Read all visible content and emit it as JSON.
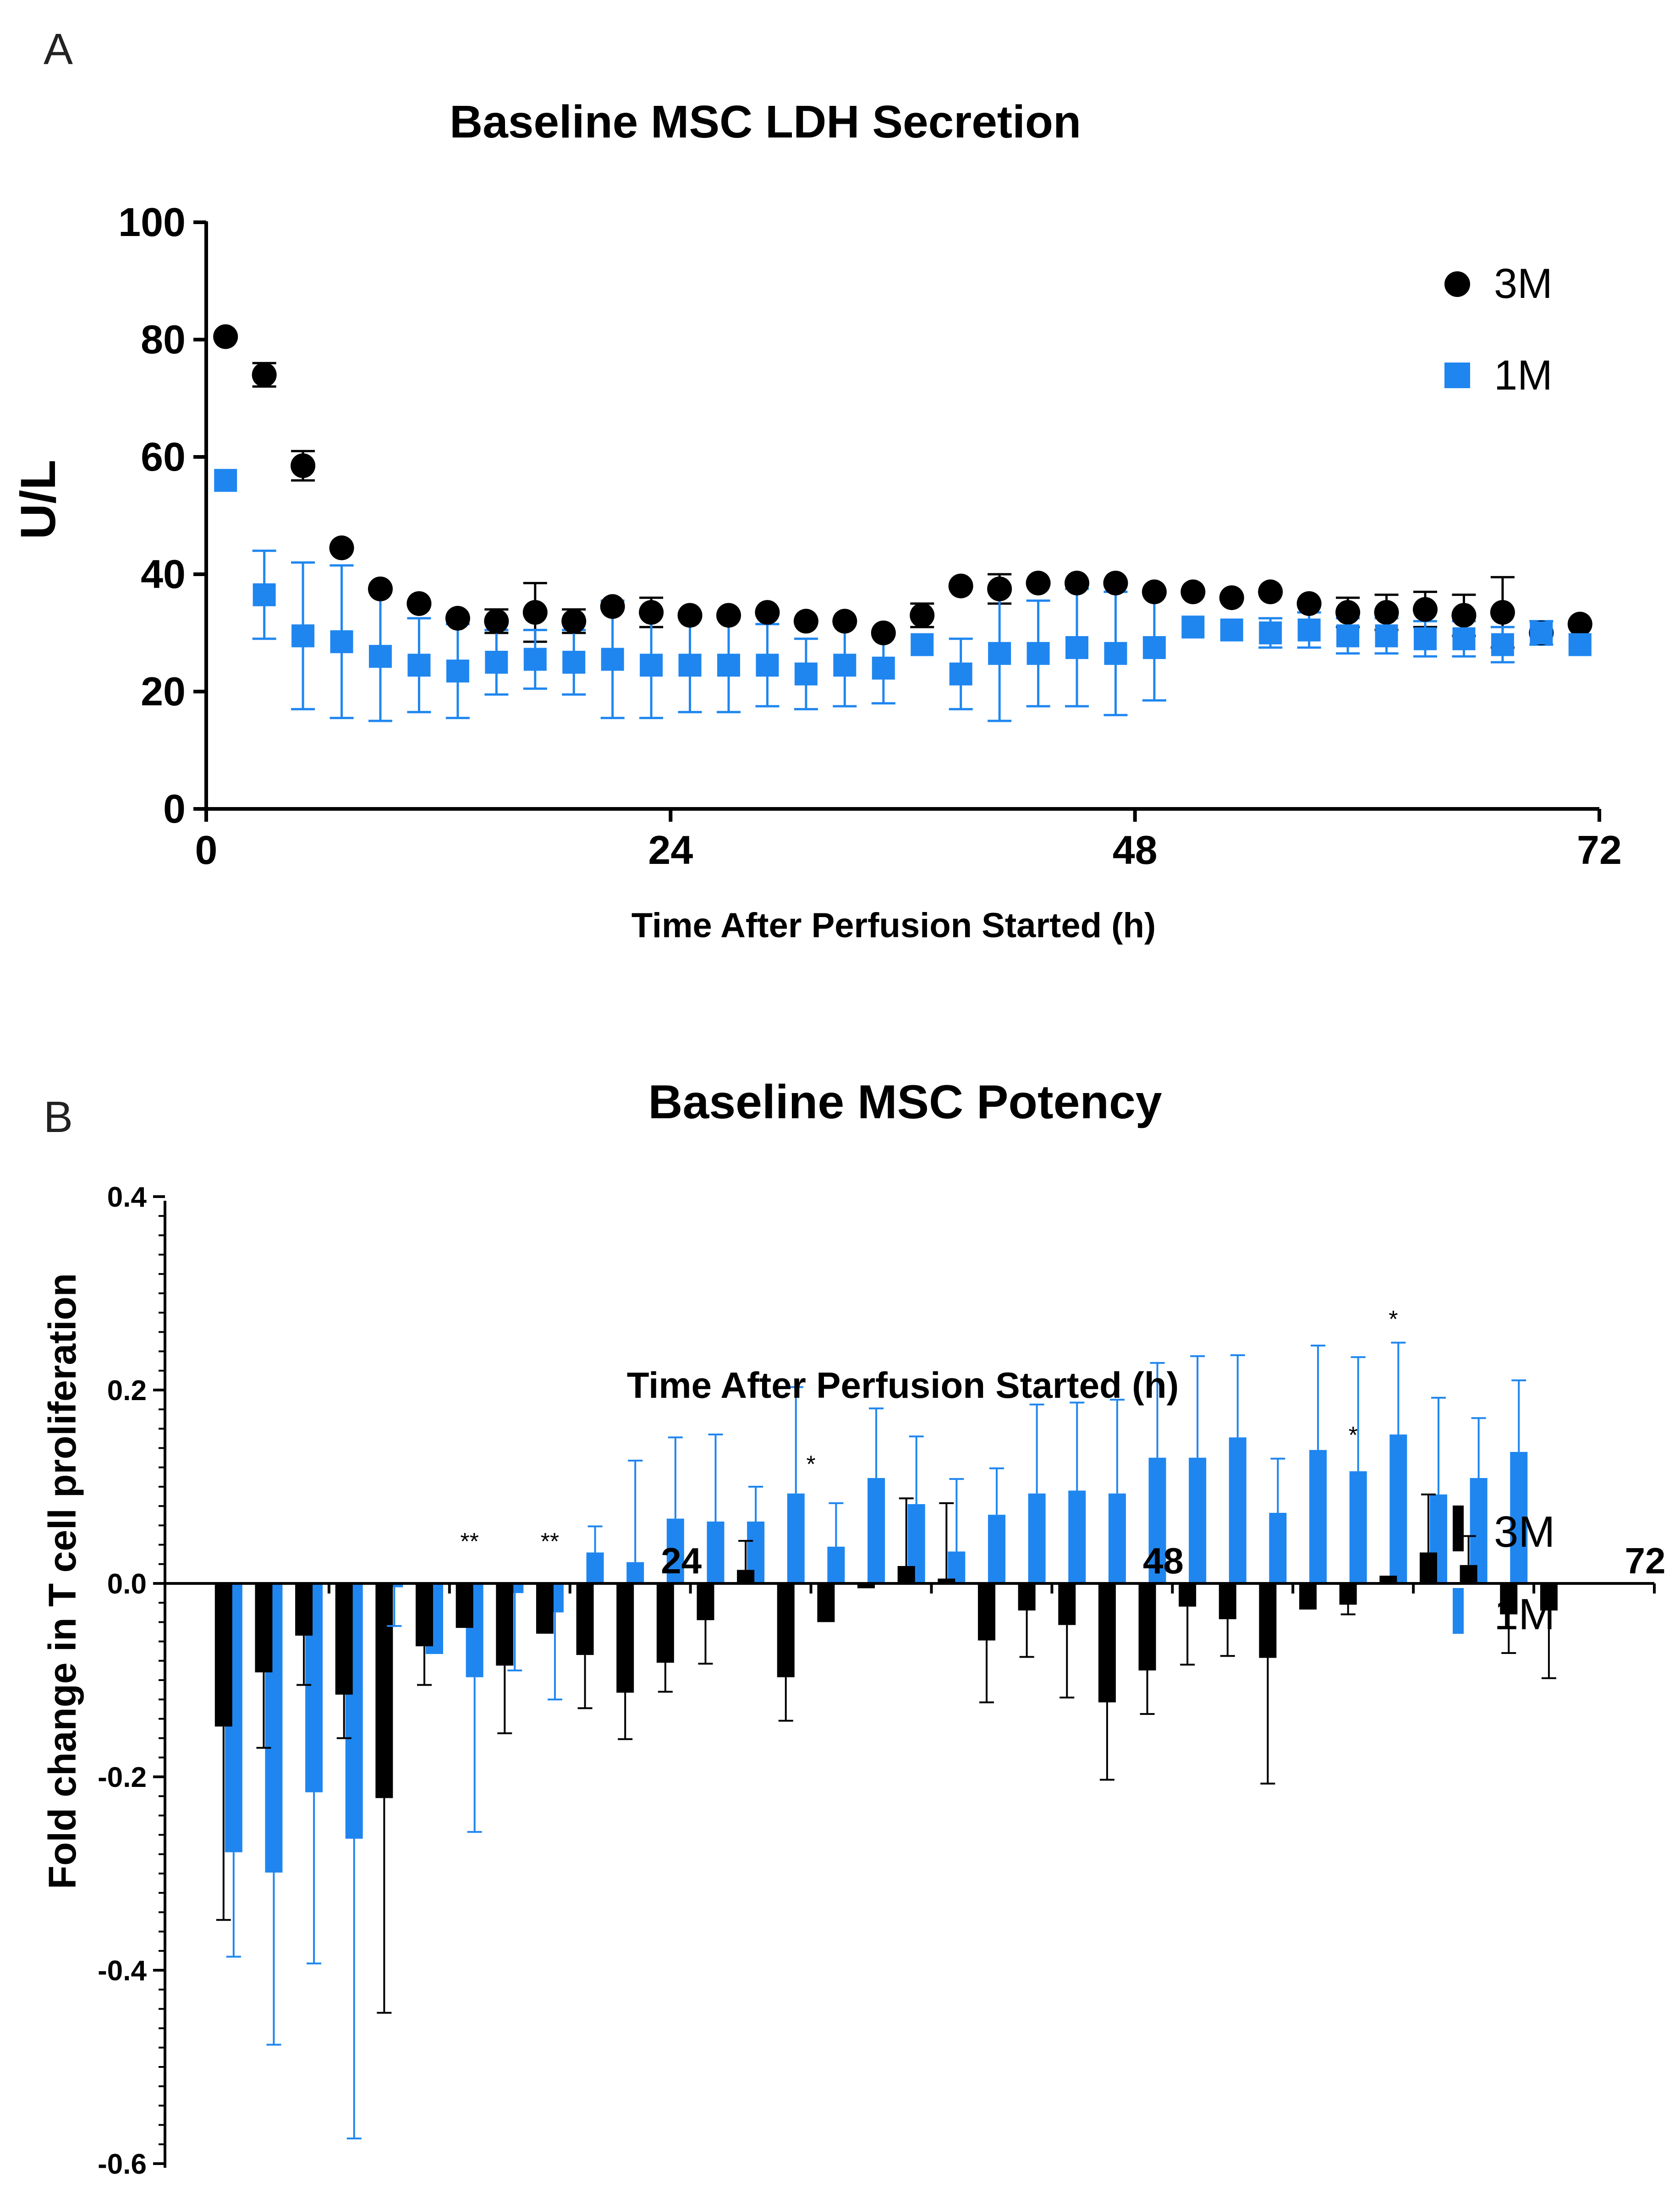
{
  "figure": {
    "panel_a_label": "A",
    "panel_b_label": "B"
  },
  "chart_data": [
    {
      "type": "scatter",
      "panel": "A",
      "title": "Baseline MSC LDH Secretion",
      "xlabel": "Time After Perfusion Started (h)",
      "ylabel": "U/L",
      "xlim": [
        0,
        72
      ],
      "ylim": [
        0,
        100
      ],
      "xticks": [
        0,
        24,
        48,
        72
      ],
      "xtick_labels": [
        "0",
        "24",
        "48",
        "72"
      ],
      "yticks": [
        0,
        20,
        40,
        60,
        80,
        100
      ],
      "ytick_labels": [
        "0",
        "20",
        "40",
        "60",
        "80",
        "100"
      ],
      "grid": false,
      "legend_position": "top-right",
      "x": [
        1,
        3,
        5,
        7,
        9,
        11,
        13,
        15,
        17,
        19,
        21,
        23,
        25,
        27,
        29,
        31,
        33,
        35,
        37,
        39,
        41,
        43,
        45,
        47,
        49,
        51,
        53,
        55,
        57,
        59,
        61,
        63,
        65,
        67,
        69,
        71
      ],
      "series": [
        {
          "name": "3M",
          "marker": "circle",
          "color": "#000000",
          "values": [
            80.5,
            74,
            58.5,
            44.5,
            37.5,
            35,
            32.5,
            32,
            33.5,
            32,
            34.5,
            33.5,
            33,
            33,
            33.5,
            32,
            32,
            30,
            33,
            38,
            37.5,
            38.5,
            38.5,
            38.5,
            37,
            37,
            36,
            37,
            35,
            33.5,
            33.5,
            34,
            33,
            33.5,
            30,
            31.5
          ],
          "errors": [
            0,
            2,
            2.5,
            0,
            0,
            0,
            0,
            2,
            5,
            2,
            0,
            2.5,
            0,
            0,
            0,
            0,
            0,
            0,
            2,
            0,
            2.5,
            0,
            0,
            0,
            0,
            0,
            0,
            0,
            0,
            2.5,
            3,
            3,
            3.5,
            6,
            0,
            0
          ]
        },
        {
          "name": "1M",
          "marker": "square",
          "color": "#1f86f0",
          "values": [
            56,
            36.5,
            29.5,
            28.5,
            26,
            24.5,
            23.5,
            25,
            25.5,
            25,
            25.5,
            24.5,
            24.5,
            24.5,
            24.5,
            23,
            24.5,
            24,
            28,
            23,
            26.5,
            26.5,
            27.5,
            26.5,
            27.5,
            31,
            30.5,
            30,
            30.5,
            29.5,
            29.5,
            29,
            29,
            28,
            30,
            28
          ],
          "errors": [
            0,
            7.5,
            12.5,
            13,
            11,
            8,
            8,
            5.5,
            5,
            5.5,
            10,
            9,
            8,
            8,
            7,
            6,
            7,
            6,
            0,
            6,
            11.5,
            9,
            10,
            10.5,
            9,
            0,
            0,
            2.5,
            3,
            3,
            3,
            3,
            3,
            3,
            2,
            0
          ]
        }
      ]
    },
    {
      "type": "bar",
      "panel": "B",
      "title": "Baseline MSC Potency",
      "xlabel": "Time After Perfusion Started (h)",
      "ylabel": "Fold change in T cell proliferation",
      "xlim": [
        0,
        72
      ],
      "ylim": [
        -0.6,
        0.4
      ],
      "xticks": [
        24,
        48,
        72
      ],
      "xtick_labels": [
        "24",
        "48",
        "72"
      ],
      "yticks": [
        -0.6,
        -0.4,
        -0.2,
        0.0,
        0.2,
        0.4
      ],
      "ytick_labels": [
        "-0.6",
        "-0.4",
        "-0.2",
        "0.0",
        "0.2",
        "0.4"
      ],
      "grid": false,
      "legend_position": "bottom-right",
      "x": [
        1,
        3,
        5,
        7,
        9,
        11,
        13,
        15,
        17,
        19,
        21,
        23,
        25,
        27,
        29,
        31,
        33,
        35,
        37,
        39,
        41,
        43,
        45,
        47,
        49,
        51,
        53,
        55,
        57,
        59,
        61,
        63,
        65,
        67,
        69,
        71
      ],
      "series": [
        {
          "name": "3M",
          "color": "#000000",
          "values": [
            -0.148,
            -0.092,
            -0.054,
            -0.115,
            -0.222,
            -0.065,
            -0.046,
            -0.085,
            -0.052,
            -0.074,
            -0.113,
            -0.082,
            -0.038,
            0.014,
            -0.097,
            -0.04,
            -0.005,
            0.018,
            0.005,
            -0.059,
            -0.028,
            -0.043,
            -0.123,
            -0.09,
            -0.024,
            -0.037,
            -0.077,
            -0.027,
            -0.022,
            0.008,
            0.032,
            0.019,
            -0.032,
            -0.028,
            0,
            0
          ],
          "errors": [
            0.2,
            0.078,
            0.051,
            0.045,
            0.222,
            0.04,
            0,
            0.07,
            0,
            0.055,
            0.048,
            0.03,
            0.045,
            0.03,
            0.045,
            0,
            0,
            0.07,
            0.078,
            0.064,
            0.048,
            0.075,
            0.08,
            0.045,
            0.06,
            0.038,
            0.13,
            0,
            0.01,
            0,
            0.06,
            0.03,
            0.04,
            0.07,
            0,
            0
          ]
        },
        {
          "name": "1M",
          "color": "#1f86f0",
          "values": [
            -0.278,
            -0.299,
            -0.216,
            -0.264,
            -0.004,
            -0.073,
            -0.097,
            -0.01,
            -0.03,
            0.032,
            0.022,
            0.067,
            0.064,
            0.064,
            0.093,
            0.038,
            0.109,
            0.082,
            0.033,
            0.071,
            0.093,
            0.096,
            0.093,
            0.13,
            0.13,
            0.151,
            0.073,
            0.138,
            0.116,
            0.154,
            0.092,
            0.109,
            0.136,
            0,
            0,
            0
          ],
          "errors": [
            0.108,
            0.178,
            0.177,
            0.31,
            0.04,
            0,
            0.16,
            0.08,
            0.09,
            0.027,
            0.105,
            0.084,
            0.09,
            0.036,
            0.11,
            0.045,
            0.072,
            0.07,
            0.075,
            0.048,
            0.092,
            0.091,
            0.097,
            0.098,
            0.105,
            0.085,
            0.056,
            0.108,
            0.118,
            0.095,
            0.1,
            0.062,
            0.074,
            0,
            0,
            0
          ]
        }
      ],
      "annotations": [
        {
          "x": 13,
          "y": 0.035,
          "text": "**"
        },
        {
          "x": 17,
          "y": 0.035,
          "text": "**"
        },
        {
          "x": 30,
          "y": 0.115,
          "text": "*"
        },
        {
          "x": 57,
          "y": 0.145,
          "text": "*"
        },
        {
          "x": 59,
          "y": 0.265,
          "text": "*"
        }
      ]
    }
  ]
}
